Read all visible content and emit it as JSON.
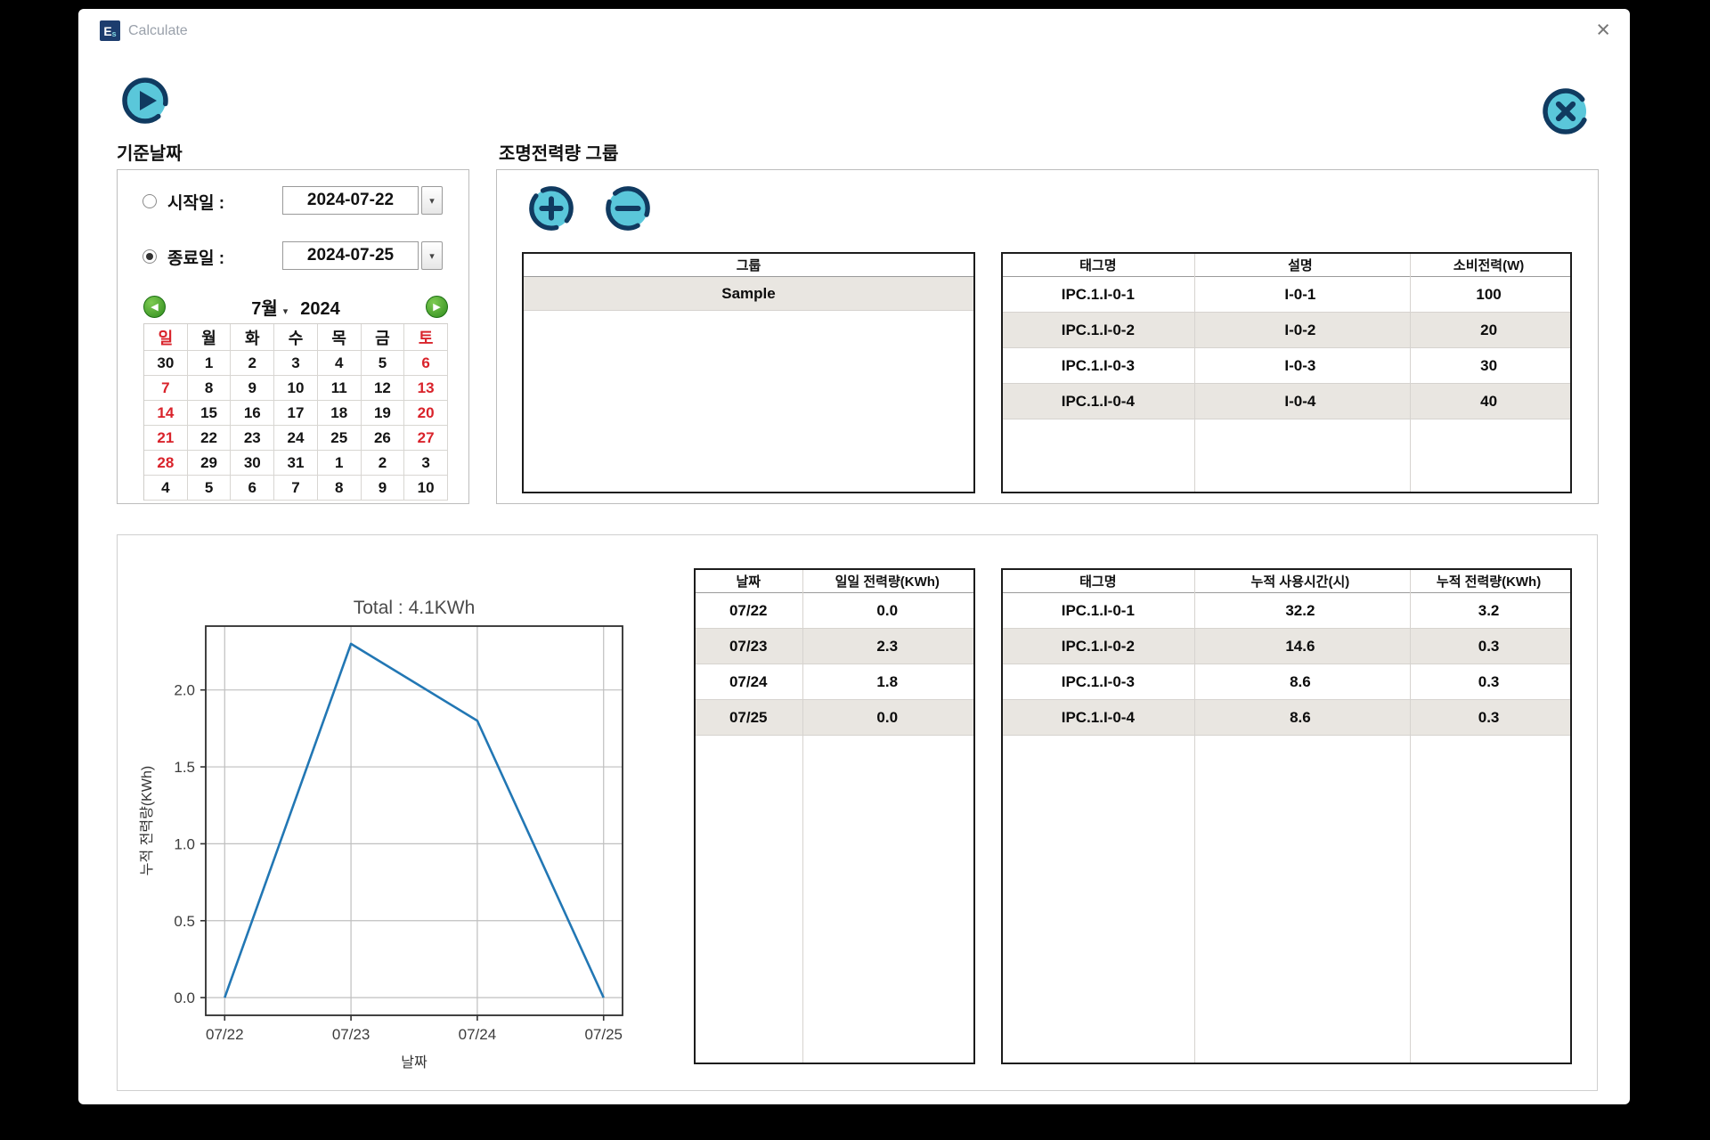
{
  "window": {
    "title": "Calculate",
    "app_icon_main": "E",
    "app_icon_sub": "s",
    "close_symbol": "×"
  },
  "colors": {
    "teal_button_fill": "#5ac7da",
    "navy": "#103a60",
    "calendar_red": "#d9232b",
    "row_alternate": "#e9e6e1",
    "chart_line": "#2277b4",
    "nav_green": "#2f8c1d"
  },
  "icons": {
    "run": "play-icon",
    "close": "x-icon",
    "add": "plus-icon",
    "remove": "minus-icon",
    "dropdown_caret": "▾",
    "month_caret": "▾",
    "prev_arrow": "◀",
    "next_arrow": "▶"
  },
  "date_section": {
    "title": "기준날짜",
    "start": {
      "label": "시작일 :",
      "value": "2024-07-22",
      "selected": false
    },
    "end": {
      "label": "종료일 :",
      "value": "2024-07-25",
      "selected": true
    },
    "calendar": {
      "month_label": "7월",
      "year_label": "2024",
      "day_headers": [
        "일",
        "월",
        "화",
        "수",
        "목",
        "금",
        "토"
      ],
      "red_headers": [
        0,
        6
      ],
      "weeks": [
        [
          "30",
          "1",
          "2",
          "3",
          "4",
          "5",
          "6"
        ],
        [
          "7",
          "8",
          "9",
          "10",
          "11",
          "12",
          "13"
        ],
        [
          "14",
          "15",
          "16",
          "17",
          "18",
          "19",
          "20"
        ],
        [
          "21",
          "22",
          "23",
          "24",
          "25",
          "26",
          "27"
        ],
        [
          "28",
          "29",
          "30",
          "31",
          "1",
          "2",
          "3"
        ],
        [
          "4",
          "5",
          "6",
          "7",
          "8",
          "9",
          "10"
        ]
      ],
      "red_cells": [
        [
          0,
          6
        ],
        [
          1,
          0
        ],
        [
          1,
          6
        ],
        [
          2,
          0
        ],
        [
          2,
          6
        ],
        [
          3,
          0
        ],
        [
          3,
          6
        ],
        [
          4,
          0
        ]
      ]
    }
  },
  "group_section": {
    "title": "조명전력량 그룹",
    "group_table": {
      "header": "그룹",
      "rows": [
        "Sample"
      ]
    },
    "tag_table": {
      "headers": [
        "태그명",
        "설명",
        "소비전력(W)"
      ],
      "rows": [
        [
          "IPC.1.I-0-1",
          "I-0-1",
          "100"
        ],
        [
          "IPC.1.I-0-2",
          "I-0-2",
          "20"
        ],
        [
          "IPC.1.I-0-3",
          "I-0-3",
          "30"
        ],
        [
          "IPC.1.I-0-4",
          "I-0-4",
          "40"
        ]
      ]
    }
  },
  "result_section": {
    "daily_table": {
      "headers": [
        "날짜",
        "일일 전력량(KWh)"
      ],
      "rows": [
        [
          "07/22",
          "0.0"
        ],
        [
          "07/23",
          "2.3"
        ],
        [
          "07/24",
          "1.8"
        ],
        [
          "07/25",
          "0.0"
        ]
      ]
    },
    "cumulative_table": {
      "headers": [
        "태그명",
        "누적 사용시간(시)",
        "누적 전력량(KWh)"
      ],
      "rows": [
        [
          "IPC.1.I-0-1",
          "32.2",
          "3.2"
        ],
        [
          "IPC.1.I-0-2",
          "14.6",
          "0.3"
        ],
        [
          "IPC.1.I-0-3",
          "8.6",
          "0.3"
        ],
        [
          "IPC.1.I-0-4",
          "8.6",
          "0.3"
        ]
      ]
    }
  },
  "chart_data": {
    "type": "line",
    "title": "Total : 4.1KWh",
    "x": [
      "07/22",
      "07/23",
      "07/24",
      "07/25"
    ],
    "values": [
      0.0,
      2.3,
      1.8,
      0.0
    ],
    "xlabel": "날짜",
    "ylabel": "누적 전력량(KWh)",
    "yticks": [
      0.0,
      0.5,
      1.0,
      1.5,
      2.0
    ],
    "ylim": [
      -0.115,
      2.415
    ],
    "grid": true,
    "legend": false,
    "line_color": "#2277b4"
  }
}
